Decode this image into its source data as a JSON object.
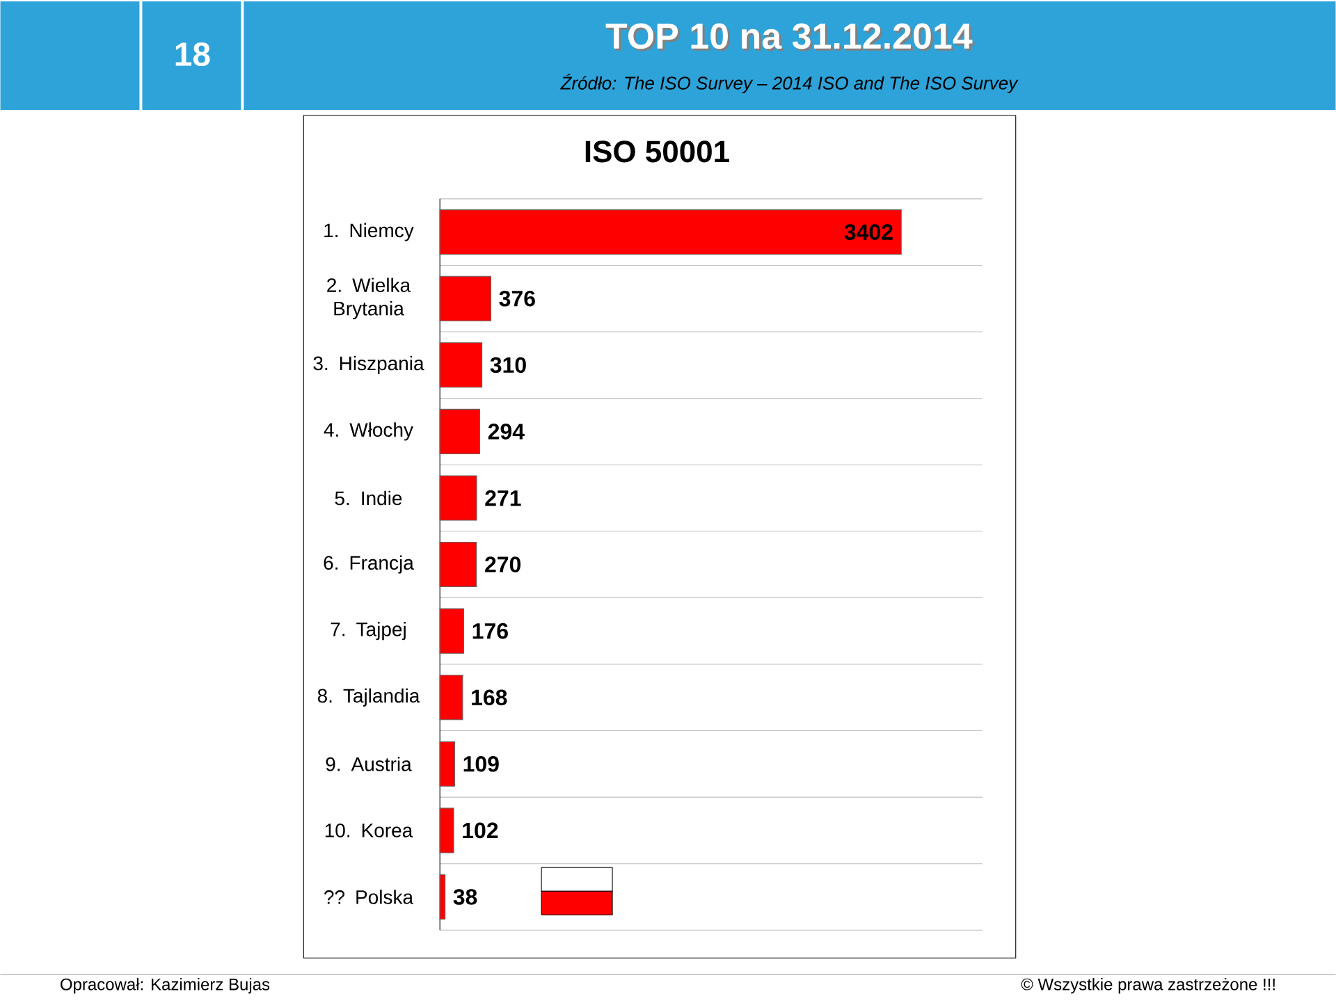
{
  "chart_data": {
    "type": "bar",
    "orientation": "horizontal",
    "title": "TOP 10 na 31.12.2014",
    "subtitle": "ISO 50001",
    "categories": [
      "1. Niemcy",
      "2. Wielka Brytania",
      "3. Hiszpania",
      "4. Włochy",
      "5. Indie",
      "6. Francja",
      "7. Tajpej",
      "8. Tajlandia",
      "9. Austria",
      "10. Korea",
      "?? Polska"
    ],
    "values": [
      3402,
      376,
      310,
      294,
      271,
      270,
      176,
      168,
      109,
      102,
      38
    ],
    "color": "#ff0000",
    "xlim": [
      0,
      4000
    ],
    "tick_labels": "y",
    "grid": "y",
    "data_labels": true,
    "annotations": [
      "18",
      "Źródło: The ISO Survey – 2014   ISO and The ISO Survey",
      "Opracował: Kazimierz Bujas",
      "© Wszystkie prawa zastrzeżone !!!"
    ]
  }
}
